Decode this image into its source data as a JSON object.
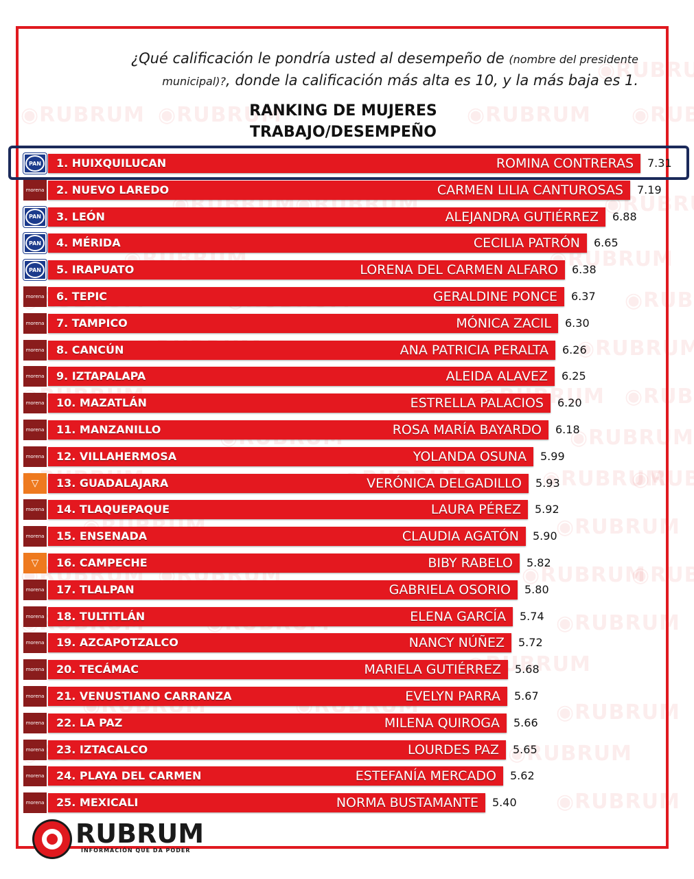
{
  "question": {
    "part1": "¿Qué calificación le pondría usted al desempeño de",
    "part2": "(nombre del presidente",
    "part3": "municipal)?",
    "part4": ", donde la calificación más alta es 10, y la más baja es 1."
  },
  "title_line1": "RANKING DE MUJERES",
  "title_line2": "TRABAJO/DESEMPEÑO",
  "watermark_text": "RUBRUM",
  "brand": {
    "name": "RUBRUM",
    "tagline": "INFORMACIÓN QUE DA PODER"
  },
  "colors": {
    "bar": "#e4181f",
    "frame": "#e0191f",
    "highlight": "#1b2a5a",
    "pan": "#1c3b8c",
    "morena": "#8a1c1c",
    "mc": "#ee7a1f"
  },
  "chart_data": {
    "type": "bar",
    "orientation": "horizontal",
    "title": "RANKING DE MUJERES TRABAJO/DESEMPEÑO",
    "rows": [
      {
        "rank": "1. HUIXQUILUCAN",
        "name": "ROMINA CONTRERAS",
        "score": 7.31,
        "party": "pan",
        "party_label": "PAN"
      },
      {
        "rank": "2. NUEVO LAREDO",
        "name": "CARMEN LILIA CANTUROSAS",
        "score": 7.19,
        "party": "morena",
        "party_label": "morena"
      },
      {
        "rank": "3. LEÓN",
        "name": "ALEJANDRA GUTIÉRREZ",
        "score": 6.88,
        "party": "pan",
        "party_label": "PAN"
      },
      {
        "rank": "4. MÉRIDA",
        "name": "CECILIA PATRÓN",
        "score": 6.65,
        "party": "pan",
        "party_label": "PAN"
      },
      {
        "rank": "5. IRAPUATO",
        "name": "LORENA DEL CARMEN ALFARO",
        "score": 6.38,
        "party": "pan",
        "party_label": "PAN"
      },
      {
        "rank": "6. TEPIC",
        "name": "GERALDINE PONCE",
        "score": 6.37,
        "party": "morena",
        "party_label": "morena"
      },
      {
        "rank": "7. TAMPICO",
        "name": "MÓNICA ZACIL",
        "score": 6.3,
        "party": "morena",
        "party_label": "morena"
      },
      {
        "rank": "8. CANCÚN",
        "name": "ANA PATRICIA PERALTA",
        "score": 6.26,
        "party": "morena",
        "party_label": "morena"
      },
      {
        "rank": "9. IZTAPALAPA",
        "name": "ALEIDA ALAVEZ",
        "score": 6.25,
        "party": "morena",
        "party_label": "morena"
      },
      {
        "rank": "10. MAZATLÁN",
        "name": "ESTRELLA PALACIOS",
        "score": 6.2,
        "party": "morena",
        "party_label": "morena"
      },
      {
        "rank": "11. MANZANILLO",
        "name": "ROSA MARÍA BAYARDO",
        "score": 6.18,
        "party": "morena",
        "party_label": "morena"
      },
      {
        "rank": "12. VILLAHERMOSA",
        "name": "YOLANDA OSUNA",
        "score": 5.99,
        "party": "morena",
        "party_label": "morena"
      },
      {
        "rank": "13. GUADALAJARA",
        "name": "VERÓNICA DELGADILLO",
        "score": 5.93,
        "party": "mc",
        "party_label": "MC"
      },
      {
        "rank": "14. TLAQUEPAQUE",
        "name": "LAURA PÉREZ",
        "score": 5.92,
        "party": "morena",
        "party_label": "morena"
      },
      {
        "rank": "15. ENSENADA",
        "name": "CLAUDIA AGATÓN",
        "score": 5.9,
        "party": "morena",
        "party_label": "morena"
      },
      {
        "rank": "16. CAMPECHE",
        "name": "BIBY RABELO",
        "score": 5.82,
        "party": "mc",
        "party_label": "MC"
      },
      {
        "rank": "17. TLALPAN",
        "name": "GABRIELA OSORIO",
        "score": 5.8,
        "party": "morena",
        "party_label": "morena"
      },
      {
        "rank": "18. TULTITLÁN",
        "name": "ELENA GARCÍA",
        "score": 5.74,
        "party": "morena",
        "party_label": "morena"
      },
      {
        "rank": "19. AZCAPOTZALCO",
        "name": "NANCY NÚÑEZ",
        "score": 5.72,
        "party": "morena",
        "party_label": "morena"
      },
      {
        "rank": "20. TECÁMAC",
        "name": "MARIELA GUTIÉRREZ",
        "score": 5.68,
        "party": "morena",
        "party_label": "morena"
      },
      {
        "rank": "21. VENUSTIANO CARRANZA",
        "name": "EVELYN PARRA",
        "score": 5.67,
        "party": "morena",
        "party_label": "morena"
      },
      {
        "rank": "22. LA PAZ",
        "name": "MILENA QUIROGA",
        "score": 5.66,
        "party": "morena",
        "party_label": "morena"
      },
      {
        "rank": "23. IZTACALCO",
        "name": "LOURDES PAZ",
        "score": 5.65,
        "party": "morena",
        "party_label": "morena"
      },
      {
        "rank": "24. PLAYA DEL CARMEN",
        "name": "ESTEFANÍA MERCADO",
        "score": 5.62,
        "party": "morena",
        "party_label": "morena"
      },
      {
        "rank": "25. MEXICALI",
        "name": "NORMA BUSTAMANTE",
        "score": 5.4,
        "party": "morena",
        "party_label": "morena"
      }
    ]
  }
}
